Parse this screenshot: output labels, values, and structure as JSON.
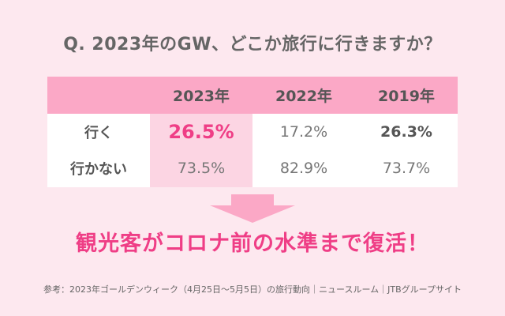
{
  "question": "Q. 2023年のGW、どこか旅行に行きますか？",
  "conclusion": "観光客がコロナ前の水準まで復活！",
  "source": "参考：2023年ゴールデンウィーク（4月25日〜5月5日）の旅行動向｜ニュースルーム｜JTBグループサイト",
  "colors": {
    "background": "#fde8ef",
    "header": "#fba8c6",
    "highlight": "#fcd5e3",
    "accent": "#ef3e86",
    "arrow": "#fba8c6"
  },
  "chart_data": {
    "type": "table",
    "columns": [
      "2023年",
      "2022年",
      "2019年"
    ],
    "rows": [
      {
        "label": "行く",
        "values": [
          "26.5%",
          "17.2%",
          "26.3%"
        ]
      },
      {
        "label": "行かない",
        "values": [
          "73.5%",
          "82.9%",
          "73.7%"
        ]
      }
    ]
  }
}
